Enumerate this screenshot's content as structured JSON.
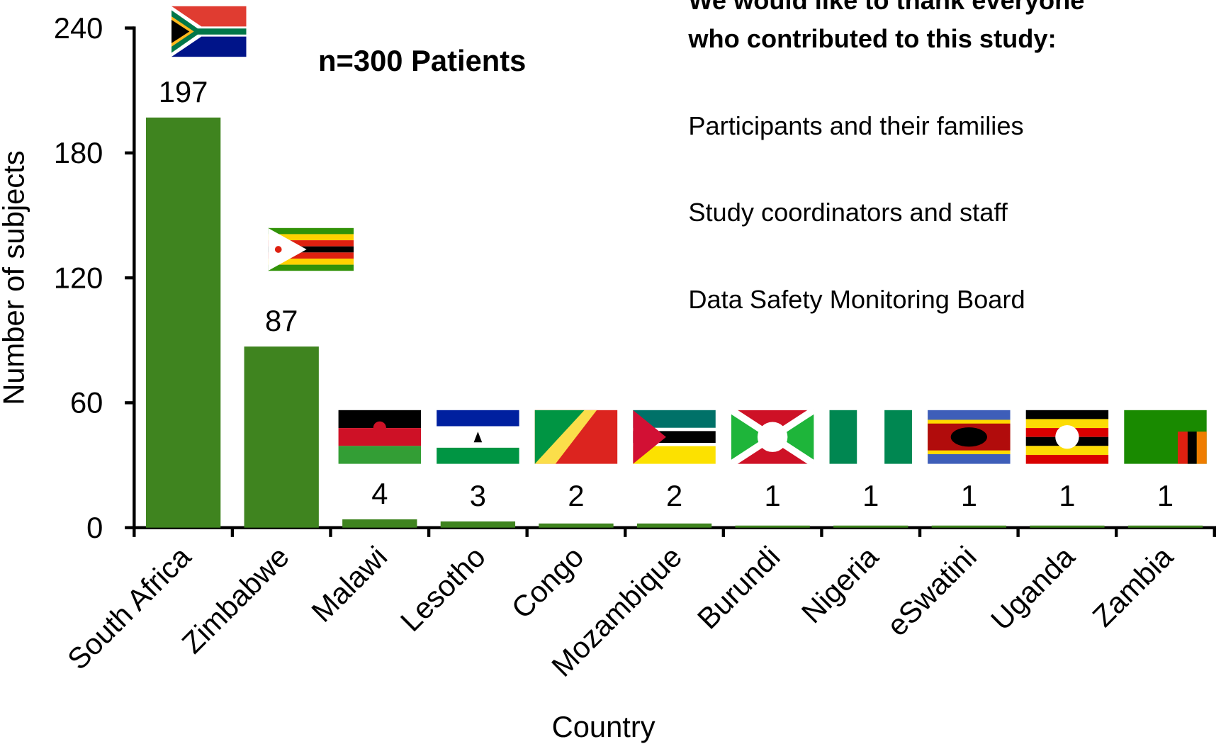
{
  "chart_data": {
    "type": "bar",
    "categories": [
      "South Africa",
      "Zimbabwe",
      "Malawi",
      "Lesotho",
      "Congo",
      "Mozambique",
      "Burundi",
      "Nigeria",
      "eSwatini",
      "Uganda",
      "Zambia"
    ],
    "values": [
      197,
      87,
      4,
      3,
      2,
      2,
      1,
      1,
      1,
      1,
      1
    ],
    "color": "#3f841f",
    "ylim": [
      0,
      240
    ],
    "yticks": [
      0,
      60,
      120,
      180,
      240
    ],
    "y_label": "Number of subjects",
    "x_label": "Country",
    "annotation": "n=300 Patients",
    "acknowledgement_title": [
      "We would like to thank everyone",
      "who contributed to this study:"
    ],
    "acknowledgements": [
      "Participants and their families",
      "Study coordinators and staff",
      "Data Safety Monitoring Board"
    ],
    "grid": false
  }
}
